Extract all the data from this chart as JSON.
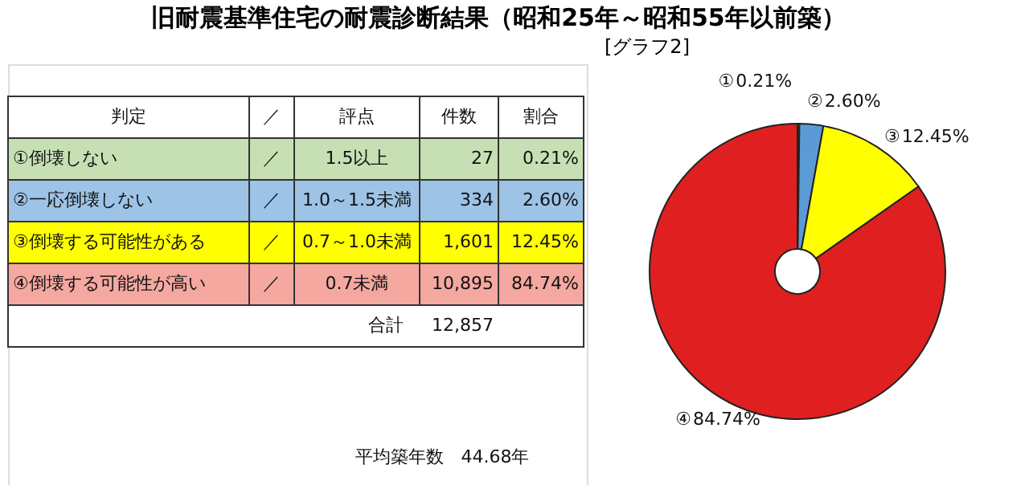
{
  "chart_data": [
    {
      "type": "other",
      "title": "旧耐震基準住宅の耐震診断結果（昭和25年～昭和55年以前築）",
      "annotations": [
        "判定",
        "／",
        "評点",
        "件数",
        "割合",
        "①倒壊しない",
        "／",
        "1.5以上",
        "27",
        "0.21%",
        "②一応倒壊しない",
        "／",
        "1.0～1.5未満",
        "334",
        "2.60%",
        "③倒壊する可能性がある",
        "／",
        "0.7～1.0未満",
        "1,601",
        "12.45%",
        "④倒壊する可能性が高い",
        "／",
        "0.7未満",
        "10,895",
        "84.74%",
        "合計",
        "12,857",
        "平均築年数　44.68年"
      ]
    },
    {
      "type": "donut",
      "title": "[グラフ2]",
      "categories": [
        "①",
        "②",
        "③",
        "④"
      ],
      "values": [
        0.21,
        2.6,
        12.45,
        84.74
      ],
      "value_labels": [
        "0.21%",
        "2.60%",
        "12.45%",
        "84.74%"
      ],
      "colors": [
        "#70ad47",
        "#5b9bd5",
        "#ffff00",
        "#e02020"
      ]
    }
  ]
}
